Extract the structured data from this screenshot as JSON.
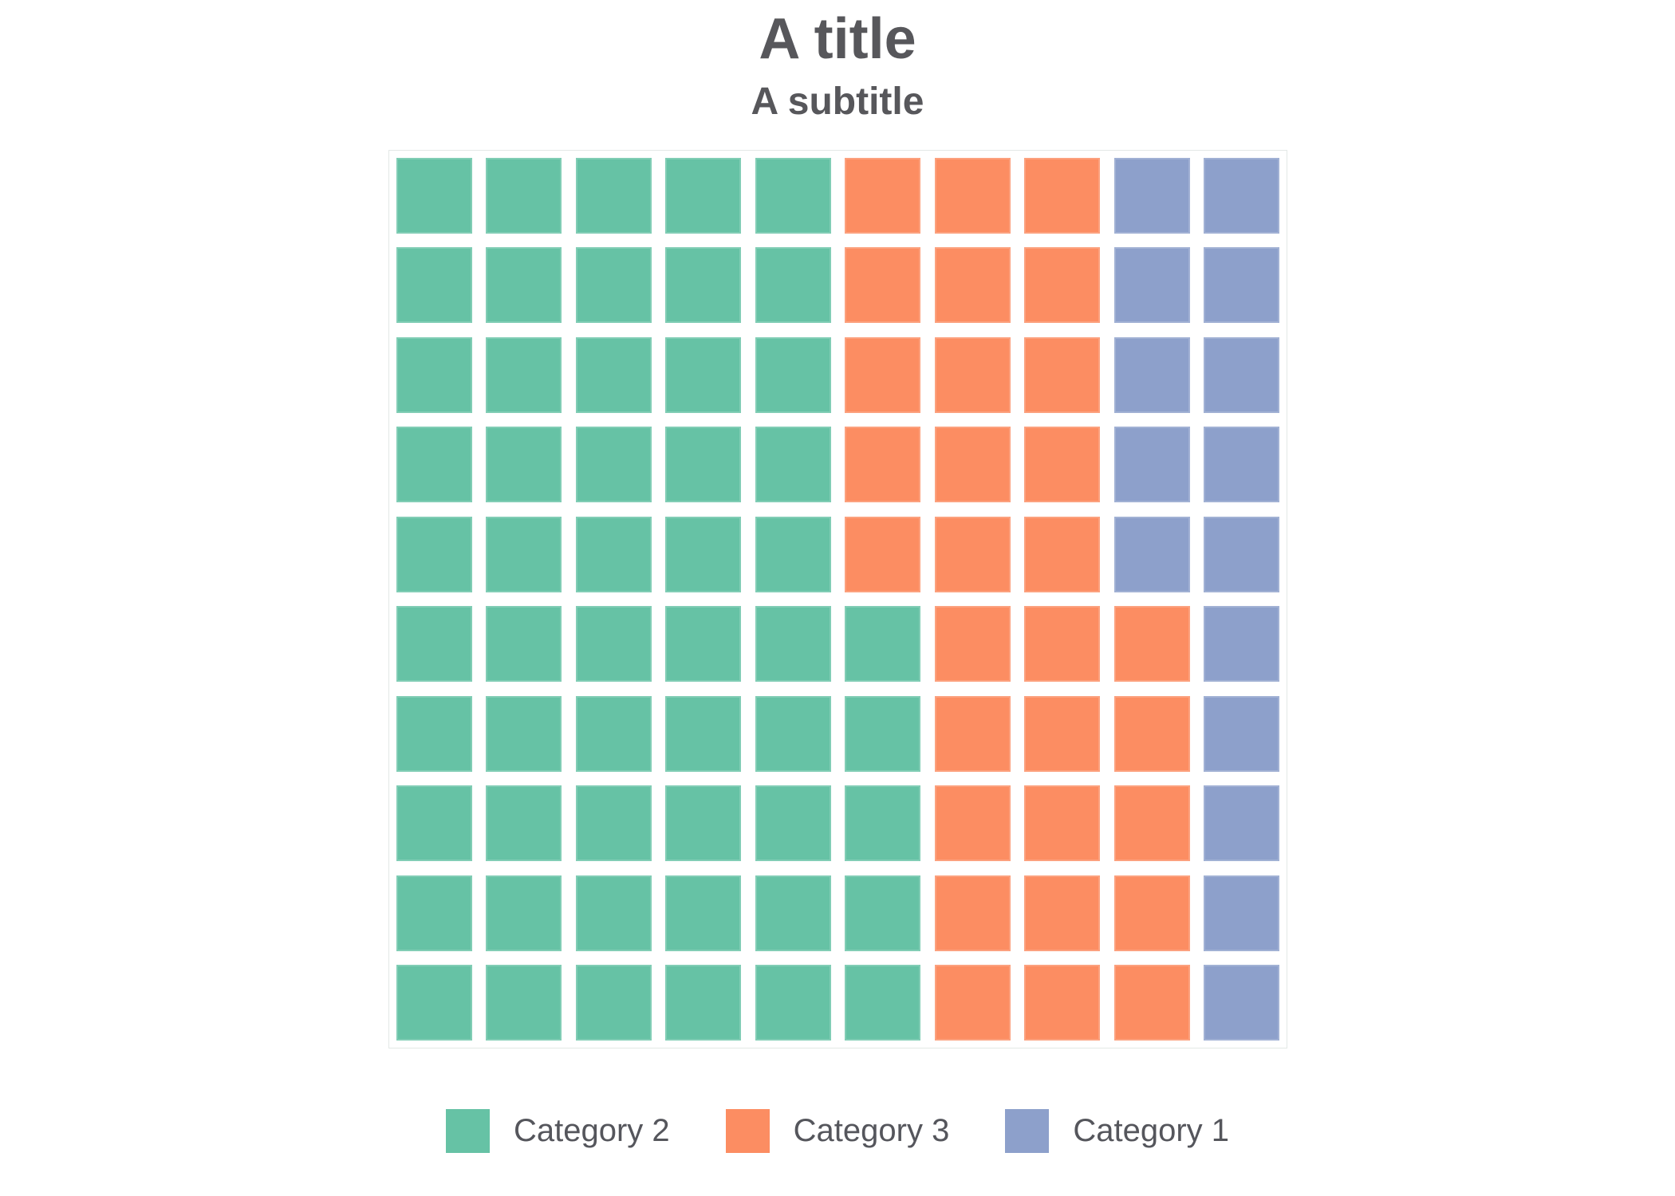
{
  "header": {
    "title": "A title",
    "subtitle": "A subtitle",
    "title_color": "#57575b"
  },
  "chart_data": {
    "type": "waffle",
    "title": "A title",
    "subtitle": "A subtitle",
    "grid": {
      "rows": 10,
      "columns": 10,
      "total_cells": 100,
      "cell_value_percent": 1
    },
    "fill_order": "column-wise left-to-right, bottom-to-top within each column",
    "series": [
      {
        "name": "Category 2",
        "value": 55,
        "color": "#66c2a5"
      },
      {
        "name": "Category 3",
        "value": 30,
        "color": "#fc8d62"
      },
      {
        "name": "Category 1",
        "value": 15,
        "color": "#8da0cb"
      }
    ],
    "legend_position": "bottom",
    "legend_labels": [
      "Category 2",
      "Category 3",
      "Category 1"
    ],
    "background_color": "#ffffff",
    "grid_border_color": "#e3e8e6",
    "gap_color": "#ffffff"
  }
}
